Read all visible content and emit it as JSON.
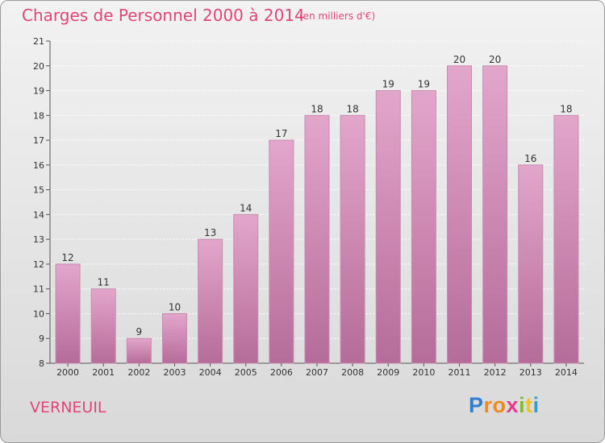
{
  "header": {
    "title": "Charges de Personnel 2000 à 2014",
    "subtitle": "(en milliers d'€)"
  },
  "footer": {
    "commune": "VERNEUIL",
    "logo_letters": [
      "P",
      "r",
      "o",
      "x",
      "i",
      "t",
      "i"
    ],
    "logo_colors": [
      "#2e7fd0",
      "#f08a1c",
      "#f08a1c",
      "#e43a8e",
      "#7cbf2d",
      "#f0c419",
      "#2e9ed6"
    ]
  },
  "colors": {
    "accent": "#e0457a",
    "bar_top": "#e3a6cb",
    "bar_bottom": "#b56c98",
    "bar_edge": "#c98ab0"
  },
  "chart_data": {
    "type": "bar",
    "categories": [
      "2000",
      "2001",
      "2002",
      "2003",
      "2004",
      "2005",
      "2006",
      "2007",
      "2008",
      "2009",
      "2010",
      "2011",
      "2012",
      "2013",
      "2014"
    ],
    "values": [
      12,
      11,
      9,
      10,
      13,
      14,
      17,
      18,
      18,
      19,
      19,
      20,
      20,
      16,
      18
    ],
    "title": "Charges de Personnel 2000 à 2014",
    "ylim": [
      8,
      21
    ],
    "yticks": [
      8,
      9,
      10,
      11,
      12,
      13,
      14,
      15,
      16,
      17,
      18,
      19,
      20,
      21
    ],
    "grid": true
  }
}
